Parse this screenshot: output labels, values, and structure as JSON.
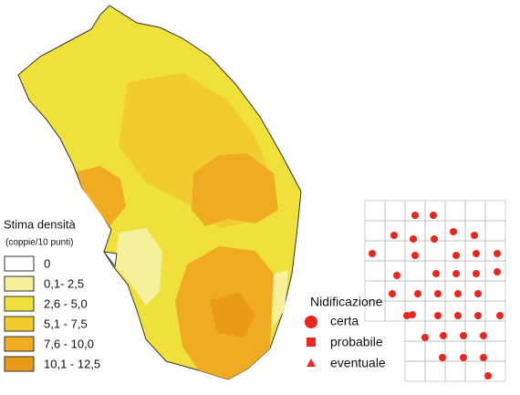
{
  "legend": {
    "title": "Stima densità",
    "subtitle": "(coppie/10 punti)",
    "classes": [
      {
        "label": "0",
        "color": "#ffffff"
      },
      {
        "label": "0,1- 2,5",
        "color": "#f6ef9c"
      },
      {
        "label": "2,6 - 5,0",
        "color": "#efe03c"
      },
      {
        "label": "5,1 - 7,5",
        "color": "#f1cc2e"
      },
      {
        "label": "7,6 - 10,0",
        "color": "#efac22"
      },
      {
        "label": "10,1 - 12,5",
        "color": "#e89a18"
      }
    ]
  },
  "nesting": {
    "title": "Nidificazione",
    "items": [
      "certa",
      "probabile",
      "eventuale"
    ],
    "color": "#e8281e"
  }
}
